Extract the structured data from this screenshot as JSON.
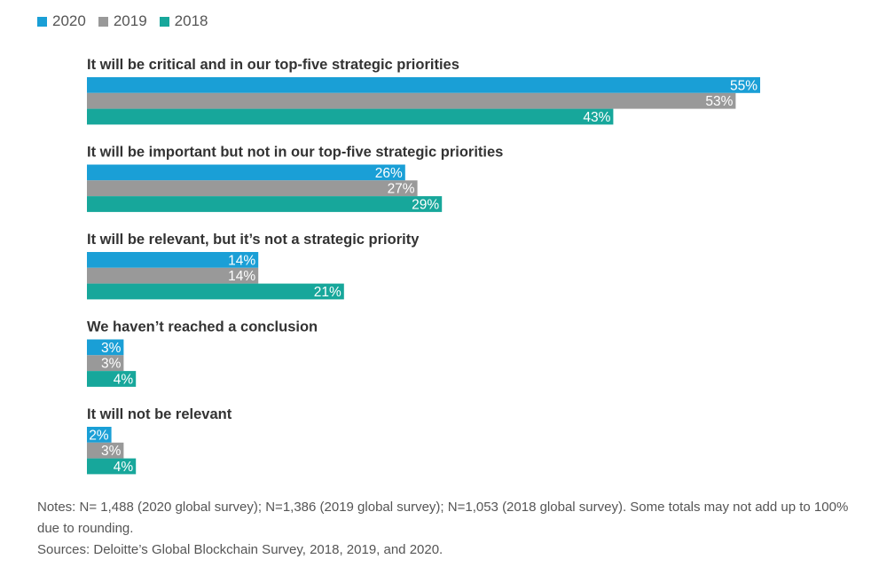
{
  "legend": [
    {
      "label": "2020",
      "color": "#1a9fd6"
    },
    {
      "label": "2019",
      "color": "#999999"
    },
    {
      "label": "2018",
      "color": "#17a79b"
    }
  ],
  "chart_data": {
    "type": "bar",
    "orientation": "horizontal",
    "categories": [
      "It will be critical and in our top-five strategic priorities",
      "It will be important but not in our top-five strategic priorities",
      "It will be relevant, but it’s not a strategic priority",
      "We haven’t reached a conclusion",
      "It will not be relevant"
    ],
    "series": [
      {
        "name": "2020",
        "color": "#1a9fd6",
        "values": [
          55,
          26,
          14,
          3,
          2
        ],
        "labels": [
          "55%",
          "26%",
          "14%",
          "3%",
          "2%"
        ]
      },
      {
        "name": "2019",
        "color": "#999999",
        "values": [
          53,
          27,
          14,
          3,
          3
        ],
        "labels": [
          "53%",
          "27%",
          "14%",
          "3%",
          "3%"
        ]
      },
      {
        "name": "2018",
        "color": "#17a79b",
        "values": [
          43,
          29,
          21,
          4,
          4
        ],
        "labels": [
          "43%",
          "29%",
          "21%",
          "4%",
          "4%"
        ]
      }
    ],
    "xlim": [
      0,
      100
    ],
    "grid": false,
    "legend_position": "top-left"
  },
  "notes": {
    "notes_text": "Notes: N= 1,488 (2020 global survey); N=1,386 (2019 global survey); N=1,053 (2018 global survey). Some totals may not add up to 100% due to rounding.",
    "sources_text": "Sources: Deloitte’s Global Blockchain Survey, 2018, 2019, and 2020."
  }
}
